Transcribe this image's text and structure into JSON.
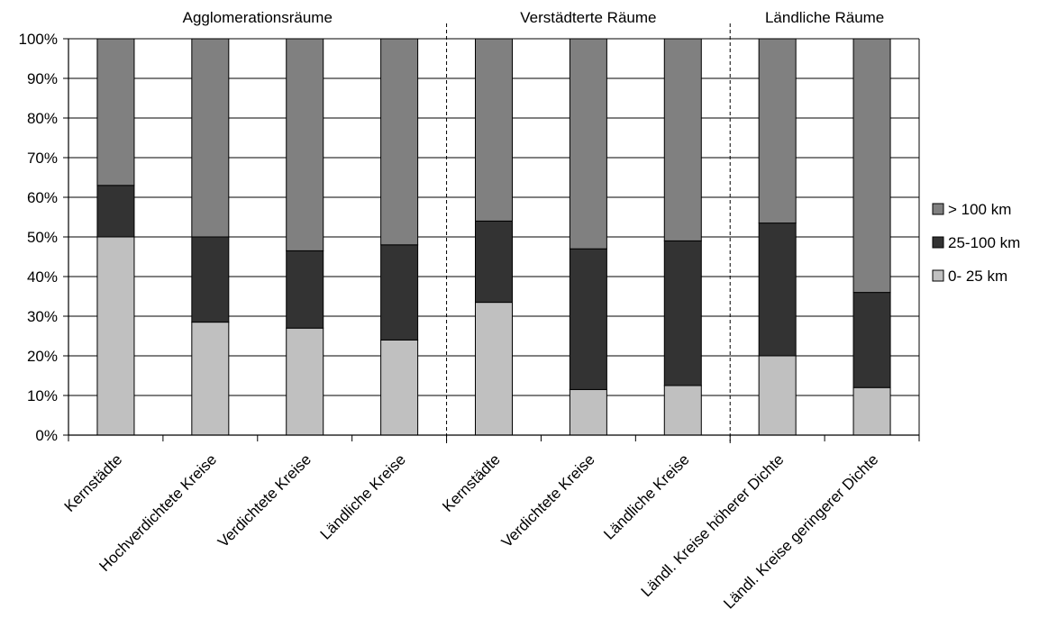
{
  "chart_data": {
    "type": "bar",
    "stacked": true,
    "stack_mode": "percent",
    "categories": [
      "Kernstädte",
      "Hochverdichtete Kreise",
      "Verdichtete Kreise",
      "Ländliche Kreise",
      "Kernstädte",
      "Verdichtete Kreise",
      "Ländliche Kreise",
      "Ländl. Kreise höherer Dichte",
      "Ländl. Kreise geringerer Dichte"
    ],
    "groups": [
      {
        "label": "Agglomerationsräume",
        "start": 0,
        "end": 3
      },
      {
        "label": "Verstädterte Räume",
        "start": 4,
        "end": 6
      },
      {
        "label": "Ländliche Räume",
        "start": 7,
        "end": 8
      }
    ],
    "series": [
      {
        "name": "0-  25 km",
        "color": "#c0c0c0",
        "values": [
          50,
          28.5,
          27,
          24,
          33.5,
          11.5,
          12.5,
          20,
          12
        ]
      },
      {
        "name": "25-100 km",
        "color": "#333333",
        "values": [
          13,
          21.5,
          19.5,
          24,
          20.5,
          35.5,
          36.5,
          33.5,
          24
        ]
      },
      {
        "name": "> 100 km",
        "color": "#808080",
        "values": [
          37,
          50,
          53.5,
          52,
          46,
          53,
          51,
          46.5,
          64
        ]
      }
    ],
    "ylim": [
      0,
      100
    ],
    "yticks": [
      "0%",
      "10%",
      "20%",
      "30%",
      "40%",
      "50%",
      "60%",
      "70%",
      "80%",
      "90%",
      "100%"
    ],
    "grid": true,
    "legend_position": "right",
    "legend_order": [
      "> 100 km",
      "25-100 km",
      "0-  25 km"
    ]
  }
}
